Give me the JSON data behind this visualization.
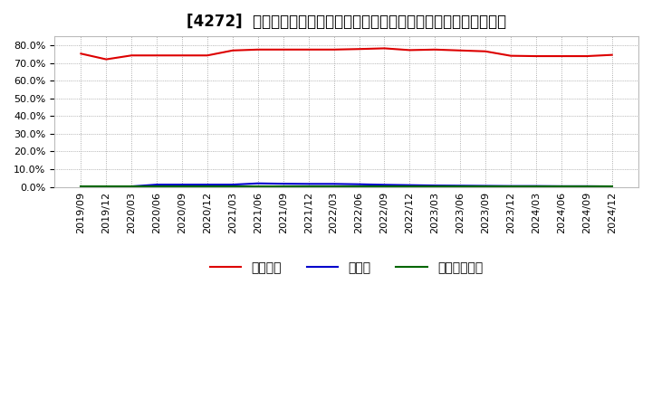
{
  "title": "[4272]  自己資本、のれん、繰延税金資産の総資産に対する比率の推移",
  "ylim": [
    0.0,
    0.85
  ],
  "yticks": [
    0.0,
    0.1,
    0.2,
    0.3,
    0.4,
    0.5,
    0.6,
    0.7,
    0.8
  ],
  "background_color": "#ffffff",
  "grid_color": "#999999",
  "legend_labels": [
    "自己資本",
    "のれん",
    "繰延税金資産"
  ],
  "legend_colors": [
    "#dd0000",
    "#0000cc",
    "#006600"
  ],
  "dates": [
    "2019/09",
    "2019/12",
    "2020/03",
    "2020/06",
    "2020/09",
    "2020/12",
    "2021/03",
    "2021/06",
    "2021/09",
    "2021/12",
    "2022/03",
    "2022/06",
    "2022/09",
    "2022/12",
    "2023/03",
    "2023/06",
    "2023/09",
    "2023/12",
    "2024/03",
    "2024/06",
    "2024/09",
    "2024/12"
  ],
  "jikoshihon": [
    0.752,
    0.72,
    0.742,
    0.742,
    0.742,
    0.742,
    0.77,
    0.775,
    0.775,
    0.775,
    0.775,
    0.778,
    0.782,
    0.772,
    0.775,
    0.77,
    0.765,
    0.74,
    0.738,
    0.738,
    0.738,
    0.745
  ],
  "noren": [
    0.003,
    0.003,
    0.003,
    0.013,
    0.013,
    0.013,
    0.013,
    0.02,
    0.018,
    0.017,
    0.017,
    0.015,
    0.012,
    0.01,
    0.008,
    0.007,
    0.006,
    0.005,
    0.005,
    0.004,
    0.004,
    0.003
  ],
  "kurinobezeikinsisan": [
    0.003,
    0.003,
    0.003,
    0.003,
    0.003,
    0.003,
    0.003,
    0.003,
    0.003,
    0.003,
    0.003,
    0.003,
    0.003,
    0.003,
    0.003,
    0.003,
    0.003,
    0.003,
    0.003,
    0.003,
    0.003,
    0.003
  ],
  "line_width": 1.5,
  "title_fontsize": 12,
  "tick_fontsize": 8,
  "legend_fontsize": 10
}
